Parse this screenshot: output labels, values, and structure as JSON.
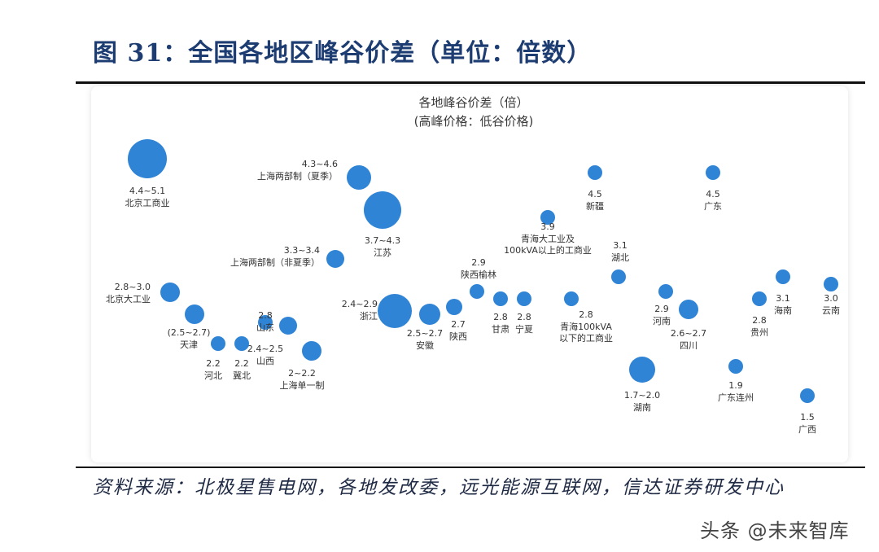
{
  "figure": {
    "title": "图 31：全国各地区峰谷价差（单位：倍数）",
    "source": "资料来源：北极星售电网，各地发改委，远光能源互联网，信达证券研发中心",
    "watermark": "头条 @未来智库"
  },
  "chart_data": {
    "type": "bubble",
    "title": "各地峰谷价差（倍）",
    "subtitle": "(高峰价格：低谷价格)",
    "xlabel": "",
    "ylabel": "",
    "grid": false,
    "legend": "none",
    "color": "#2f84d6",
    "points": [
      {
        "id": "beijing",
        "label": "北京工商业",
        "value": "4.4~5.1",
        "v": 4.75,
        "label_side": "below"
      },
      {
        "id": "shanghai-two-summer",
        "label": "上海两部制（夏季）",
        "value": "4.3~4.6",
        "v": 4.45,
        "label_side": "left"
      },
      {
        "id": "jiangsu",
        "label": "江苏",
        "value": "3.7~4.3",
        "v": 4.0,
        "label_side": "below"
      },
      {
        "id": "shanghai-two-nonsummer",
        "label": "上海两部制（非夏季）",
        "value": "3.3~3.4",
        "v": 3.35,
        "label_side": "left"
      },
      {
        "id": "beijing-large",
        "label": "北京大工业",
        "value": "2.8~3.0",
        "v": 2.9,
        "label_side": "left"
      },
      {
        "id": "tianjin",
        "label": "天津",
        "value": "(2.5~2.7)",
        "v": 2.6,
        "label_side": "below"
      },
      {
        "id": "shandong",
        "label": "山东",
        "value": "2.8",
        "v": 2.8,
        "label_side": "below"
      },
      {
        "id": "shanxi",
        "label": "山西",
        "value": "2.4~2.5",
        "v": 2.45,
        "label_side": "below"
      },
      {
        "id": "shanghai-single",
        "label": "上海单一制",
        "value": "2~2.2",
        "v": 2.1,
        "label_side": "below"
      },
      {
        "id": "hebei",
        "label": "河北",
        "value": "2.2",
        "v": 2.2,
        "label_side": "below"
      },
      {
        "id": "jibei",
        "label": "冀北",
        "value": "2.2",
        "v": 2.2,
        "label_side": "below"
      },
      {
        "id": "zhejiang",
        "label": "浙江",
        "value": "2.4~2.9",
        "v": 2.65,
        "label_side": "left"
      },
      {
        "id": "anhui",
        "label": "安徽",
        "value": "2.5~2.7",
        "v": 2.6,
        "label_side": "below"
      },
      {
        "id": "shaanxi",
        "label": "陕西",
        "value": "2.7",
        "v": 2.7,
        "label_side": "below"
      },
      {
        "id": "shaanxi-yulin",
        "label": "陕西榆林",
        "value": "2.9",
        "v": 2.9,
        "label_side": "above"
      },
      {
        "id": "gansu",
        "label": "甘肃",
        "value": "2.8",
        "v": 2.8,
        "label_side": "below"
      },
      {
        "id": "ningxia",
        "label": "宁夏",
        "value": "2.8",
        "v": 2.8,
        "label_side": "below"
      },
      {
        "id": "qinghai-large",
        "label": "青海大工业及100kVA以上的工商业",
        "value": "3.9",
        "v": 3.9,
        "label_side": "below"
      },
      {
        "id": "qinghai-small",
        "label": "青海100kVA以下的工商业",
        "value": "2.8",
        "v": 2.8,
        "label_side": "below"
      },
      {
        "id": "xinjiang",
        "label": "新疆",
        "value": "4.5",
        "v": 4.5,
        "label_side": "below"
      },
      {
        "id": "hubei",
        "label": "湖北",
        "value": "3.1",
        "v": 3.1,
        "label_side": "above"
      },
      {
        "id": "henan",
        "label": "河南",
        "value": "2.9",
        "v": 2.9,
        "label_side": "below"
      },
      {
        "id": "sichuan",
        "label": "四川",
        "value": "2.6~2.7",
        "v": 2.65,
        "label_side": "below"
      },
      {
        "id": "hunan",
        "label": "湖南",
        "value": "1.7~2.0",
        "v": 1.85,
        "label_side": "below"
      },
      {
        "id": "guangdong",
        "label": "广东",
        "value": "4.5",
        "v": 4.5,
        "label_side": "below"
      },
      {
        "id": "guangdong-lianzhou",
        "label": "广东连州",
        "value": "1.9",
        "v": 1.9,
        "label_side": "below"
      },
      {
        "id": "guizhou",
        "label": "贵州",
        "value": "2.8",
        "v": 2.8,
        "label_side": "below"
      },
      {
        "id": "hainan",
        "label": "海南",
        "value": "3.1",
        "v": 3.1,
        "label_side": "below"
      },
      {
        "id": "yunnan",
        "label": "云南",
        "value": "3.0",
        "v": 3.0,
        "label_side": "below"
      },
      {
        "id": "guangxi",
        "label": "广西",
        "value": "1.5",
        "v": 1.5,
        "label_side": "below"
      }
    ]
  }
}
